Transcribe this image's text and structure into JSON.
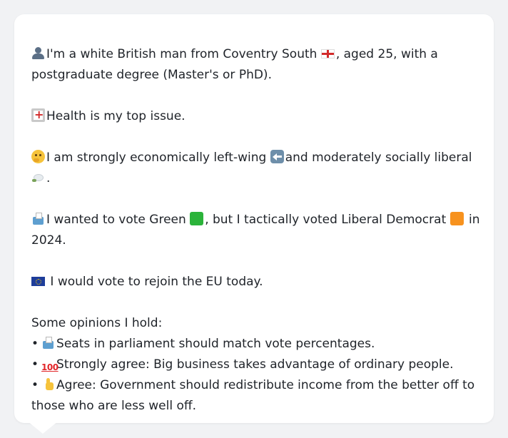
{
  "message": {
    "intro_line1": "I'm a white British man from Coventry South",
    "intro_line1_tail": ", aged 25, with a",
    "intro_line2": "postgraduate degree (Master's or PhD).",
    "top_issue": "Health is my top issue.",
    "position_a": "I am strongly economically left-wing",
    "position_b": "and moderately socially liberal",
    "position_end": ".",
    "vote_a": "I wanted to vote Green",
    "vote_b": ", but I tactically voted Liberal Democrat",
    "vote_c": "in",
    "vote_year": "2024.",
    "eu": "I would vote to rejoin the EU today.",
    "opinions_heading": "Some opinions I hold:",
    "opinions": [
      {
        "bullet": "•",
        "icon": "ballot-box-icon",
        "text": "Seats in parliament should match vote percentages."
      },
      {
        "bullet": "•",
        "icon": "hundred-icon",
        "text": "Strongly agree: Big business takes advantage of ordinary people."
      },
      {
        "bullet": "•",
        "icon": "thumbs-up-icon",
        "text": "Agree: Government should redistribute income from the better off to"
      }
    ],
    "opinion3_cont": "those who are less well off."
  },
  "icons": {
    "person": "person-icon",
    "england_flag": "flag-england-icon",
    "hospital": "hospital-icon",
    "thinking": "thinking-face-icon",
    "left_arrow": "left-arrow-icon",
    "dove": "dove-icon",
    "ballot": "ballot-box-icon",
    "green": "green-square-icon",
    "orange": "orange-square-icon",
    "eu_flag": "flag-eu-icon",
    "hundred_glyph": "💯"
  },
  "colors": {
    "background": "#f1f2f4",
    "card": "#ffffff",
    "text": "#1f2329",
    "green_party": "#2bb33a",
    "libdem": "#f7921e"
  }
}
